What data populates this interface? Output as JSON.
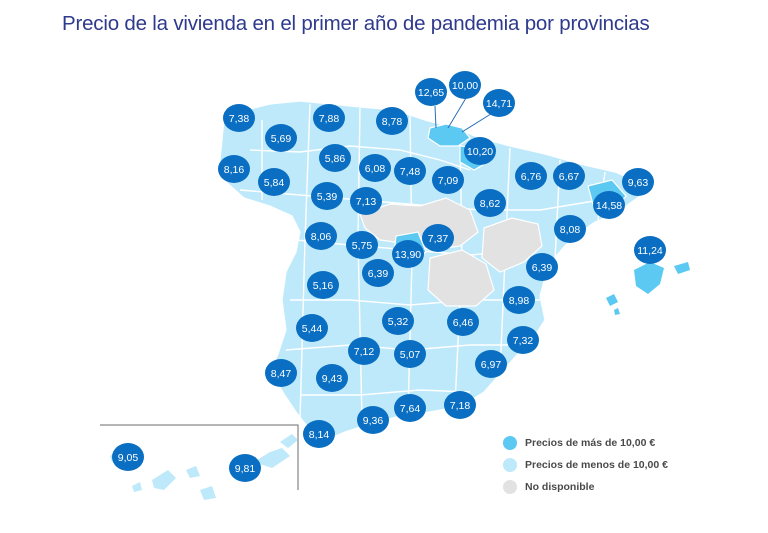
{
  "title": "Precio de la vivienda en el primer año de pandemia por provincias",
  "colors": {
    "above": "#5bc9f2",
    "below": "#bde9fb",
    "na": "#e2e2e2",
    "bubble": "#0a6fc2",
    "bubble_text": "#ffffff",
    "border": "#ffffff"
  },
  "legend": [
    {
      "label": "Precios de más de 10,00 €",
      "category": "above"
    },
    {
      "label": "Precios de menos de 10,00 €",
      "category": "below"
    },
    {
      "label": "No disponible",
      "category": "na"
    }
  ],
  "provinces": [
    {
      "value": "7,38"
    },
    {
      "value": "5,69"
    },
    {
      "value": "7,88"
    },
    {
      "value": "8,78"
    },
    {
      "value": "12,65"
    },
    {
      "value": "10,00"
    },
    {
      "value": "14,71"
    },
    {
      "value": "10,20"
    },
    {
      "value": "8,16"
    },
    {
      "value": "5,84"
    },
    {
      "value": "5,86"
    },
    {
      "value": "6,08"
    },
    {
      "value": "7,48"
    },
    {
      "value": "7,09"
    },
    {
      "value": "6,76"
    },
    {
      "value": "6,67"
    },
    {
      "value": "9,63"
    },
    {
      "value": "14,58"
    },
    {
      "value": "5,39"
    },
    {
      "value": "7,13"
    },
    {
      "value": "8,62"
    },
    {
      "value": "8,06"
    },
    {
      "value": "5,75"
    },
    {
      "value": "7,37"
    },
    {
      "value": "13,90"
    },
    {
      "value": "8,08"
    },
    {
      "value": "11,24"
    },
    {
      "value": "6,39"
    },
    {
      "value": "6,39"
    },
    {
      "value": "5,16"
    },
    {
      "value": "8,98"
    },
    {
      "value": "5,44"
    },
    {
      "value": "5,32"
    },
    {
      "value": "6,46"
    },
    {
      "value": "7,32"
    },
    {
      "value": "7,12"
    },
    {
      "value": "5,07"
    },
    {
      "value": "6,97"
    },
    {
      "value": "8,47"
    },
    {
      "value": "9,43"
    },
    {
      "value": "7,64"
    },
    {
      "value": "7,18"
    },
    {
      "value": "9,36"
    },
    {
      "value": "8,14"
    },
    {
      "value": "9,05"
    },
    {
      "value": "9,81"
    }
  ]
}
